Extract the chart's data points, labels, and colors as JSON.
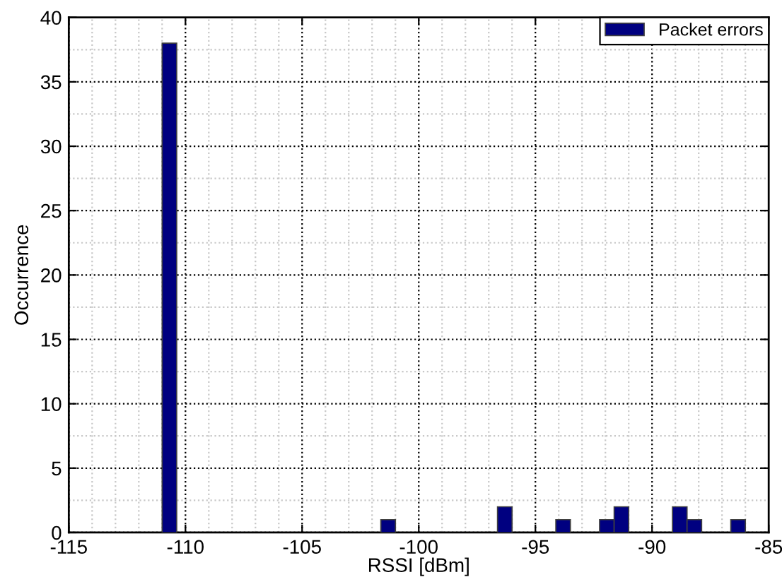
{
  "chart_data": {
    "type": "histogram",
    "xlabel": "RSSI [dBm]",
    "ylabel": "Occurrence",
    "bins": [
      -111.0,
      -110.375,
      -109.75,
      -109.125,
      -108.5,
      -107.875,
      -107.25,
      -106.625,
      -106.0,
      -105.375,
      -104.75,
      -104.125,
      -103.5,
      -102.875,
      -102.25,
      -101.625,
      -101.0,
      -100.375,
      -99.75,
      -99.125,
      -98.5,
      -97.875,
      -97.25,
      -96.625,
      -96.0,
      -95.375,
      -94.75,
      -94.125,
      -93.5,
      -92.875,
      -92.25,
      -91.625,
      -91.0,
      -90.375,
      -89.75,
      -89.125,
      -88.5,
      -87.875,
      -87.25,
      -86.625,
      -86.0
    ],
    "series": [
      {
        "name": "Packet errors",
        "color": "#000080",
        "values": [
          38,
          0,
          0,
          0,
          0,
          0,
          0,
          0,
          0,
          0,
          0,
          0,
          0,
          0,
          0,
          1,
          0,
          0,
          0,
          0,
          0,
          0,
          0,
          2,
          0,
          0,
          0,
          1,
          0,
          0,
          1,
          2,
          0,
          0,
          0,
          2,
          1,
          0,
          0,
          1
        ]
      }
    ],
    "xlim": [
      -115,
      -85
    ],
    "xticks": [
      -115,
      -110,
      -105,
      -100,
      -95,
      -90,
      -85
    ],
    "ylim": [
      0,
      40
    ],
    "yticks": [
      0,
      5,
      10,
      15,
      20,
      25,
      30,
      35,
      40
    ],
    "grid": true,
    "legend": "top right"
  }
}
